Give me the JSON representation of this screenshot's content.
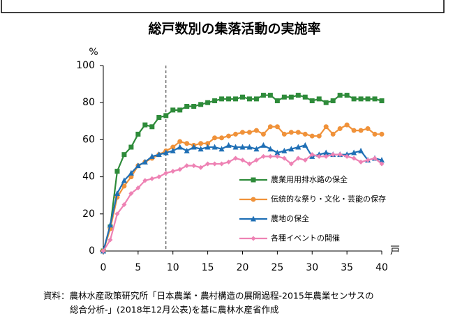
{
  "chart_data": {
    "type": "line",
    "title": "総戸数別の集落活動の実施率",
    "y_unit": "%",
    "x_unit": "戸",
    "x": [
      0,
      1,
      2,
      3,
      4,
      5,
      6,
      7,
      8,
      9,
      10,
      11,
      12,
      13,
      14,
      15,
      16,
      17,
      18,
      19,
      20,
      21,
      22,
      23,
      24,
      25,
      26,
      27,
      28,
      29,
      30,
      31,
      32,
      33,
      34,
      35,
      36,
      37,
      38,
      39,
      40
    ],
    "xlim": [
      0,
      40
    ],
    "xticks": [
      0,
      5,
      10,
      15,
      20,
      25,
      30,
      35,
      40
    ],
    "ylim": [
      0,
      100
    ],
    "yticks": [
      0,
      20,
      40,
      60,
      80,
      100
    ],
    "vline_x": 9,
    "series": [
      {
        "name": "農業用用排水路の保全",
        "color": "#2e8b3a",
        "marker": "square",
        "values": [
          0,
          13,
          43,
          52,
          56,
          63,
          68,
          67,
          72,
          73,
          76,
          76,
          78,
          78,
          79,
          80,
          81,
          82,
          82,
          82,
          83,
          82,
          82,
          84,
          84,
          81,
          83,
          83,
          84,
          83,
          81,
          82,
          80,
          81,
          84,
          84,
          82,
          82,
          82,
          82,
          81
        ]
      },
      {
        "name": "伝統的な祭り・文化・芸能の保存",
        "color": "#f0923a",
        "marker": "circle",
        "values": [
          0,
          12,
          29,
          35,
          40,
          46,
          48,
          50,
          52,
          54,
          56,
          59,
          58,
          57,
          58,
          58,
          61,
          61,
          62,
          63,
          64,
          64,
          65,
          63,
          67,
          67,
          63,
          64,
          64,
          63,
          62,
          62,
          67,
          63,
          66,
          68,
          65,
          65,
          66,
          63,
          63
        ]
      },
      {
        "name": "農地の保全",
        "color": "#1f6fb5",
        "marker": "triangle",
        "values": [
          0,
          14,
          31,
          38,
          42,
          46,
          48,
          51,
          52,
          53,
          54,
          56,
          54,
          56,
          55,
          56,
          56,
          55,
          57,
          56,
          56,
          56,
          55,
          57,
          55,
          53,
          54,
          55,
          56,
          57,
          51,
          52,
          53,
          52,
          52,
          52,
          53,
          54,
          49,
          50,
          49
        ]
      },
      {
        "name": "各種イベントの開催",
        "color": "#ee82b4",
        "marker": "diamond",
        "values": [
          0,
          6,
          20,
          25,
          31,
          34,
          38,
          39,
          40,
          42,
          43,
          44,
          46,
          46,
          45,
          47,
          47,
          47,
          48,
          50,
          49,
          47,
          49,
          51,
          51,
          51,
          50,
          47,
          50,
          49,
          52,
          51,
          51,
          52,
          52,
          51,
          50,
          48,
          49,
          50,
          47
        ]
      }
    ],
    "source_lines": [
      "資料：農林水産政策研究所「日本農業・農村構造の展開過程-2015年農業センサスの",
      "総合分析-」(2018年12月公表)を基に農林水産省作成"
    ]
  }
}
